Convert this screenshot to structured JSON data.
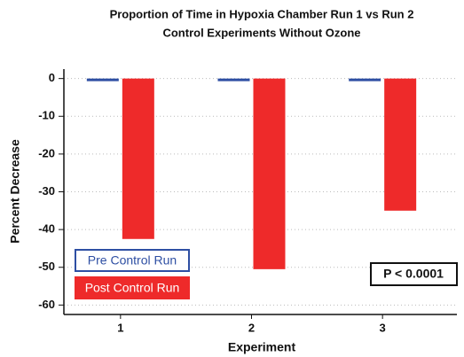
{
  "chart_data": {
    "type": "bar",
    "title": "Proportion of Time in Hypoxia Chamber Run 1 vs Run 2",
    "subtitle": "Control Experiments Without Ozone",
    "xlabel": "Experiment",
    "ylabel": "Percent Decrease",
    "categories": [
      "1",
      "2",
      "3"
    ],
    "series": [
      {
        "name": "Pre Control Run",
        "color": "#2e4fa3",
        "values": [
          -0.7,
          -0.7,
          -0.7
        ]
      },
      {
        "name": "Post Control Run",
        "color": "#ee2a2a",
        "values": [
          -42.5,
          -50.5,
          -35
        ]
      }
    ],
    "ylim": [
      -62.5,
      2.5
    ],
    "yticks": [
      0,
      -10,
      -20,
      -30,
      -40,
      -50,
      -60
    ],
    "grid": true,
    "legend": "lower left",
    "annotation": "P < 0.0001"
  }
}
